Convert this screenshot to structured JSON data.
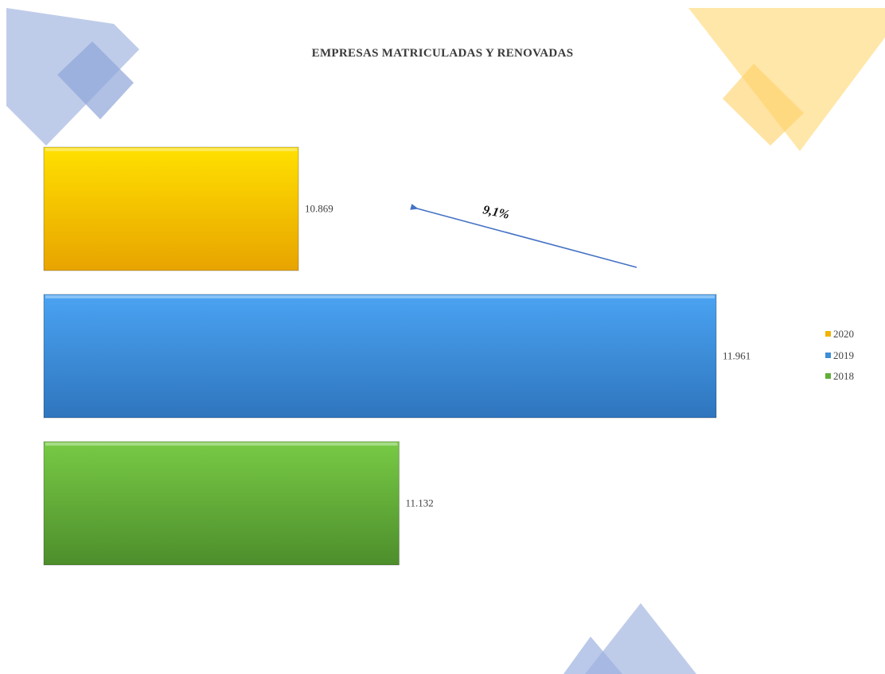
{
  "chart_data": {
    "type": "bar",
    "orientation": "horizontal",
    "title": "EMPRESAS MATRICULADAS Y RENOVADAS",
    "xlabel": "",
    "ylabel": "",
    "xlim": [
      0,
      12000
    ],
    "grid": false,
    "legend_position": "right",
    "series": [
      {
        "name": "2020",
        "value": 10869,
        "label": "10.869",
        "color": "#f2b400"
      },
      {
        "name": "2019",
        "value": 11961,
        "label": "11.961",
        "color": "#3f8ed6"
      },
      {
        "name": "2018",
        "value": 11132,
        "label": "11.132",
        "color": "#62ad3a"
      }
    ],
    "annotation": {
      "text": "9,1%",
      "arrow_color": "#4472c4"
    }
  },
  "decoration": {
    "blue": "#aabbe2",
    "blue_dark": "#8ea5d8",
    "yellow": "#ffe39a",
    "yellow_dark": "#ffd066"
  }
}
